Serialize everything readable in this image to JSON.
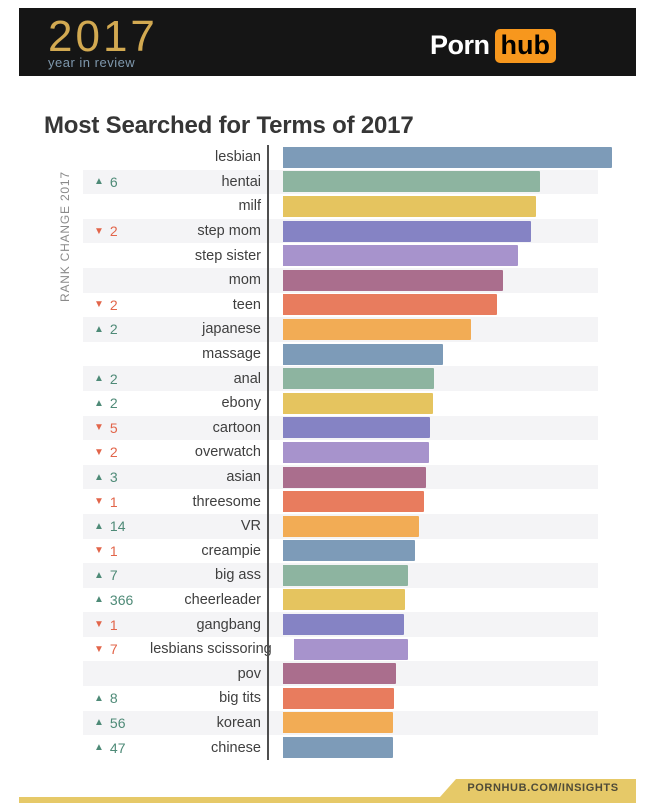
{
  "header": {
    "logo_year": "2017",
    "logo_tagline": "year in review",
    "brand_porn": "Porn",
    "brand_hub": "hub",
    "colors": {
      "header_bg": "#151515",
      "logo_gold": "#d2a951",
      "tagline_blue": "#7f98ad",
      "hub_orange": "#f7971d"
    }
  },
  "title": "Most Searched for Terms of 2017",
  "chart_data": {
    "type": "bar",
    "orientation": "horizontal",
    "title": "Most Searched for Terms of 2017",
    "axis_caption": "RANK CHANGE 2017",
    "xlim": [
      0,
      100
    ],
    "grid": false,
    "legend": "none",
    "categories": [
      "lesbian",
      "hentai",
      "milf",
      "step mom",
      "step sister",
      "mom",
      "teen",
      "japanese",
      "massage",
      "anal",
      "ebony",
      "cartoon",
      "overwatch",
      "asian",
      "threesome",
      "VR",
      "creampie",
      "big ass",
      "cheerleader",
      "gangbang",
      "lesbians scissoring",
      "pov",
      "big tits",
      "korean",
      "chinese"
    ],
    "values": [
      100,
      78,
      77,
      75.5,
      71.5,
      67,
      65,
      57,
      48.5,
      46,
      45.5,
      44.7,
      44.4,
      43.5,
      42.9,
      41.3,
      40.1,
      38,
      37.1,
      36.8,
      34.7,
      34.3,
      33.7,
      33.4,
      33.4
    ],
    "values_note": "relative bar length, percent of longest bar (lesbian = 100)",
    "rank_changes": [
      null,
      {
        "direction": "up",
        "amount": 6
      },
      null,
      {
        "direction": "down",
        "amount": 2
      },
      null,
      null,
      {
        "direction": "down",
        "amount": 2
      },
      {
        "direction": "up",
        "amount": 2
      },
      null,
      {
        "direction": "up",
        "amount": 2
      },
      {
        "direction": "up",
        "amount": 2
      },
      {
        "direction": "down",
        "amount": 5
      },
      {
        "direction": "down",
        "amount": 2
      },
      {
        "direction": "up",
        "amount": 3
      },
      {
        "direction": "down",
        "amount": 1
      },
      {
        "direction": "up",
        "amount": 14
      },
      {
        "direction": "down",
        "amount": 1
      },
      {
        "direction": "up",
        "amount": 7
      },
      {
        "direction": "up",
        "amount": 366
      },
      {
        "direction": "down",
        "amount": 1
      },
      {
        "direction": "down",
        "amount": 7
      },
      null,
      {
        "direction": "up",
        "amount": 8
      },
      {
        "direction": "up",
        "amount": 56
      },
      {
        "direction": "up",
        "amount": 47
      }
    ],
    "bar_colors": [
      "blue",
      "green",
      "yellow",
      "indigo",
      "purple",
      "mauve",
      "red",
      "orange",
      "blue",
      "green",
      "yellow",
      "indigo",
      "purple",
      "mauve",
      "red",
      "orange",
      "blue",
      "green",
      "yellow",
      "indigo",
      "purple",
      "mauve",
      "red",
      "orange",
      "blue"
    ],
    "palette": {
      "blue": "#7d9bb8",
      "green": "#8db4a0",
      "yellow": "#e5c45f",
      "indigo": "#8583c4",
      "purple": "#a793cc",
      "mauve": "#aa6e8d",
      "red": "#e87c5e",
      "orange": "#f2ac55"
    },
    "indicator_colors": {
      "up": "#4e8a77",
      "down": "#e2654a"
    },
    "icons": {
      "up": "triangle-up-icon",
      "down": "triangle-down-icon"
    }
  },
  "footer": {
    "link_text": "PORNHUB.COM/INSIGHTS",
    "colors": {
      "gold": "#e6c968",
      "text": "#4f4b38"
    }
  }
}
